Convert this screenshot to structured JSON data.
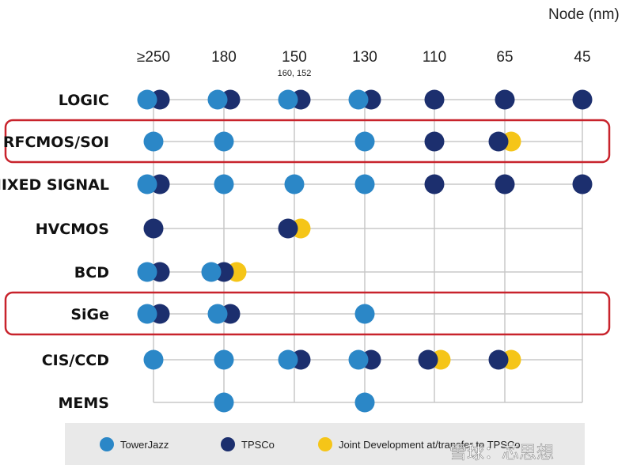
{
  "title": "Node (nm)",
  "colors": {
    "towerjazz": "#2b87c7",
    "tpsco": "#1c2f6e",
    "joint": "#f5c518",
    "highlight": "#c8232c"
  },
  "nodes": [
    {
      "label": "≥250",
      "sub": ""
    },
    {
      "label": "180",
      "sub": ""
    },
    {
      "label": "150",
      "sub": "160, 152"
    },
    {
      "label": "130",
      "sub": ""
    },
    {
      "label": "110",
      "sub": ""
    },
    {
      "label": "65",
      "sub": ""
    },
    {
      "label": "45",
      "sub": ""
    }
  ],
  "rows": [
    {
      "label": "LOGIC",
      "highlighted": false,
      "cells": [
        [
          "T",
          "P"
        ],
        [
          "T",
          "P"
        ],
        [
          "T",
          "P"
        ],
        [
          "T",
          "P"
        ],
        [
          "P"
        ],
        [
          "P"
        ],
        [
          "P"
        ]
      ]
    },
    {
      "label": "RFCMOS/SOI",
      "highlighted": true,
      "cells": [
        [
          "T"
        ],
        [
          "T"
        ],
        [],
        [
          "T"
        ],
        [
          "P"
        ],
        [
          "P",
          "J"
        ],
        []
      ]
    },
    {
      "label": "MIXED SIGNAL",
      "highlighted": false,
      "cells": [
        [
          "T",
          "P"
        ],
        [
          "T"
        ],
        [
          "T"
        ],
        [
          "T"
        ],
        [
          "P"
        ],
        [
          "P"
        ],
        [
          "P"
        ]
      ]
    },
    {
      "label": "HVCMOS",
      "highlighted": false,
      "cells": [
        [
          "P"
        ],
        [],
        [
          "P",
          "J"
        ],
        [],
        [],
        [],
        []
      ]
    },
    {
      "label": "BCD",
      "highlighted": false,
      "cells": [
        [
          "T",
          "P"
        ],
        [
          "T",
          "P",
          "J"
        ],
        [],
        [],
        [],
        [],
        []
      ]
    },
    {
      "label": "SiGe",
      "highlighted": true,
      "cells": [
        [
          "T",
          "P"
        ],
        [
          "T",
          "P"
        ],
        [],
        [
          "T"
        ],
        [],
        [],
        []
      ]
    },
    {
      "label": "CIS/CCD",
      "highlighted": false,
      "cells": [
        [
          "T"
        ],
        [
          "T"
        ],
        [
          "T",
          "P"
        ],
        [
          "T",
          "P"
        ],
        [
          "P",
          "J"
        ],
        [
          "P",
          "J"
        ],
        []
      ]
    },
    {
      "label": "MEMS",
      "highlighted": false,
      "cells": [
        [],
        [
          "T"
        ],
        [],
        [
          "T"
        ],
        [],
        [],
        []
      ]
    }
  ],
  "legend": [
    {
      "key": "T",
      "label": "TowerJazz"
    },
    {
      "key": "P",
      "label": "TPSCo"
    },
    {
      "key": "J",
      "label": "Joint Development at/transfer to TPSCo"
    }
  ],
  "watermark": "雪球：芯思想"
}
